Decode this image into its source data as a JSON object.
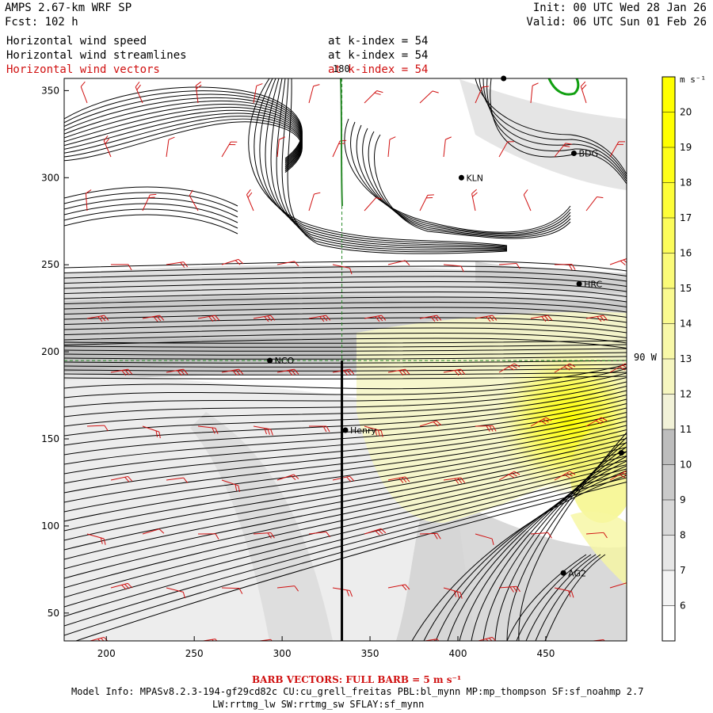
{
  "header": {
    "title": "AMPS 2.67-km WRF SP",
    "forecast": "Fcst: 102 h",
    "init": "Init: 00 UTC Wed 28 Jan 26",
    "valid": "Valid: 06 UTC Sun 01 Feb 26"
  },
  "fields": [
    {
      "name": "Horizontal wind speed",
      "level": "at k-index = 54",
      "color": "#000000"
    },
    {
      "name": "Horizontal wind streamlines",
      "level": "at k-index = 54",
      "color": "#000000"
    },
    {
      "name": "Horizontal wind vectors",
      "level": "at k-index = 54",
      "color": "#d01010"
    }
  ],
  "axes": {
    "x_ticks": [
      200,
      250,
      300,
      350,
      400,
      450
    ],
    "y_ticks": [
      50,
      100,
      150,
      200,
      250,
      300,
      350
    ],
    "x_range": [
      176,
      496
    ],
    "y_range": [
      34,
      357
    ]
  },
  "reference_lines": {
    "meridian_label": "180",
    "parallel_label": "90 W",
    "meridian_x": 334,
    "parallel_y": 195
  },
  "stations": [
    {
      "name": "KLN",
      "x": 402,
      "y": 300
    },
    {
      "name": "BDG",
      "x": 466,
      "y": 314
    },
    {
      "name": "HRC",
      "x": 469,
      "y": 239
    },
    {
      "name": "NCO",
      "x": 293,
      "y": 195
    },
    {
      "name": "Henry",
      "x": 336,
      "y": 155
    },
    {
      "name": "AG2",
      "x": 460,
      "y": 73
    },
    {
      "name": "",
      "x": 426,
      "y": 357
    },
    {
      "name": "",
      "x": 493,
      "y": 142
    }
  ],
  "colorbar": {
    "unit": "m s⁻¹",
    "levels": [
      6,
      7,
      8,
      9,
      10,
      11,
      12,
      13,
      14,
      15,
      16,
      17,
      18,
      19,
      20
    ],
    "colors": [
      "#ffffff",
      "#f4f4f4",
      "#e6e6e6",
      "#d8d8d8",
      "#cacaca",
      "#bdbdbd",
      "#f2f2d8",
      "#f6f6c0",
      "#f8f8a8",
      "#fafa90",
      "#fbfb78",
      "#fcfc5a",
      "#fdfd38",
      "#fefe18",
      "#ffff00",
      "#ffff00"
    ]
  },
  "footer": {
    "barb_note": "BARB VECTORS: FULL BARB = 5 m s⁻¹",
    "model_info_1": "Model Info: MPASv8.2.3-194-gf29cd82c CU:cu_grell_freitas PBL:bl_mynn MP:mp_thompson SF:sf_noahmp 2.7",
    "model_info_2": "LW:rrtmg_lw SW:rrtmg_sw SFLAY:sf_mynn"
  }
}
